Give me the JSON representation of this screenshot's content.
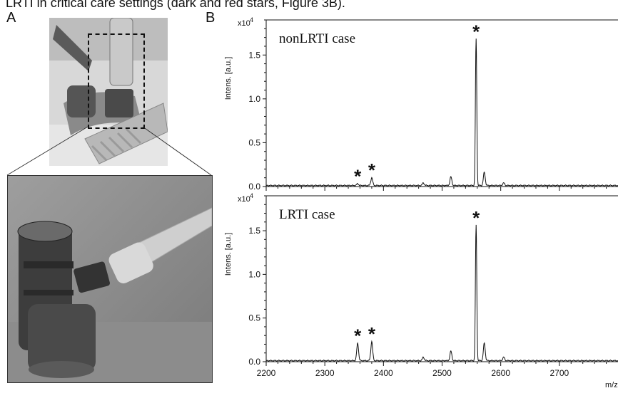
{
  "caption_top": "LRTI in critical care settings (dark and red stars, Figure 3B).",
  "panels": {
    "a": "A",
    "b": "B"
  },
  "colors": {
    "red_star": "#e31a1c",
    "black_star": "#111111",
    "trace": "#111111"
  },
  "chart_data": [
    {
      "type": "line",
      "title": "nonLRTI case",
      "ylabel": "Intens. [a.u.]",
      "xlabel": "m/z",
      "yscale_label": "x10",
      "yscale_exp": "4",
      "xlim": [
        2200,
        2800
      ],
      "ylim": [
        0,
        1.9
      ],
      "x_ticks": [
        "2200",
        "2300",
        "2400",
        "2500",
        "2600",
        "2700"
      ],
      "y_ticks": [
        "0.0",
        "0.5",
        "1.0",
        "1.5"
      ],
      "peaks": [
        {
          "x": 2356,
          "y": 0.02
        },
        {
          "x": 2380,
          "y": 0.09
        },
        {
          "x": 2468,
          "y": 0.03
        },
        {
          "x": 2515,
          "y": 0.1
        },
        {
          "x": 2558,
          "y": 1.67
        },
        {
          "x": 2572,
          "y": 0.15
        },
        {
          "x": 2605,
          "y": 0.03
        }
      ],
      "markers": [
        {
          "x": 2356,
          "y": 0.02,
          "color": "red",
          "symbol": "*"
        },
        {
          "x": 2380,
          "y": 0.09,
          "color": "red",
          "symbol": "*"
        },
        {
          "x": 2558,
          "y": 1.67,
          "color": "black",
          "symbol": "*"
        }
      ]
    },
    {
      "type": "line",
      "title": "LRTI case",
      "ylabel": "Intens. [a.u.]",
      "xlabel": "m/z",
      "yscale_label": "x10",
      "yscale_exp": "4",
      "xlim": [
        2200,
        2800
      ],
      "ylim": [
        0,
        1.9
      ],
      "x_ticks": [
        "2200",
        "2300",
        "2400",
        "2500",
        "2600",
        "2700"
      ],
      "y_ticks": [
        "0.0",
        "0.5",
        "1.0",
        "1.5"
      ],
      "peaks": [
        {
          "x": 2356,
          "y": 0.2
        },
        {
          "x": 2380,
          "y": 0.22
        },
        {
          "x": 2468,
          "y": 0.04
        },
        {
          "x": 2515,
          "y": 0.11
        },
        {
          "x": 2558,
          "y": 1.55
        },
        {
          "x": 2572,
          "y": 0.2
        },
        {
          "x": 2605,
          "y": 0.04
        }
      ],
      "markers": [
        {
          "x": 2356,
          "y": 0.2,
          "color": "red",
          "symbol": "*"
        },
        {
          "x": 2380,
          "y": 0.22,
          "color": "red",
          "symbol": "*"
        },
        {
          "x": 2558,
          "y": 1.55,
          "color": "black",
          "symbol": "*"
        }
      ]
    }
  ]
}
